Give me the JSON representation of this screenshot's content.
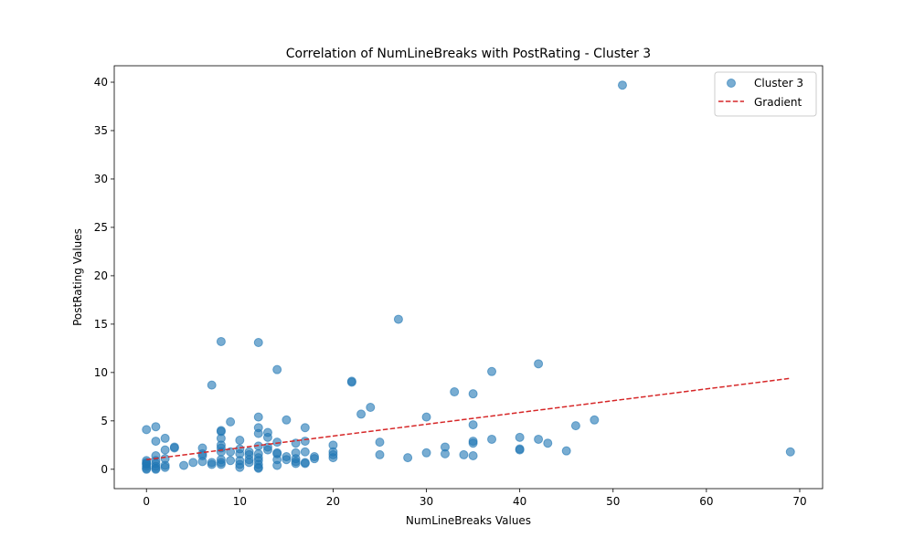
{
  "chart_data": {
    "type": "scatter",
    "title": "Correlation of NumLineBreaks with PostRating - Cluster 3",
    "xlabel": "NumLineBreaks Values",
    "ylabel": "PostRating Values",
    "xlim": [
      -3.45,
      72.45
    ],
    "ylim": [
      -2.0,
      41.7
    ],
    "xticks": [
      0,
      10,
      20,
      30,
      40,
      50,
      60,
      70
    ],
    "yticks": [
      0,
      5,
      10,
      15,
      20,
      25,
      30,
      35,
      40
    ],
    "grid": false,
    "legend_position": "top-right",
    "colors": {
      "points": "#1f77b4",
      "gradient": "#d62728"
    },
    "legend": [
      {
        "label": "Cluster 3",
        "kind": "marker"
      },
      {
        "label": "Gradient",
        "kind": "dashed-line"
      }
    ],
    "series": [
      {
        "name": "Cluster 3",
        "points": [
          [
            0,
            4.1
          ],
          [
            0,
            0.9
          ],
          [
            0,
            0.7
          ],
          [
            0,
            0.5
          ],
          [
            0,
            0.3
          ],
          [
            0,
            0.1
          ],
          [
            0,
            0
          ],
          [
            0,
            0.6
          ],
          [
            1,
            4.4
          ],
          [
            1,
            2.9
          ],
          [
            1,
            1.4
          ],
          [
            1,
            0.9
          ],
          [
            1,
            0.6
          ],
          [
            1,
            0.3
          ],
          [
            1,
            0.1
          ],
          [
            1,
            0
          ],
          [
            2,
            3.2
          ],
          [
            2,
            2.0
          ],
          [
            2,
            1.1
          ],
          [
            2,
            0.4
          ],
          [
            2,
            0.2
          ],
          [
            3,
            2.3
          ],
          [
            3,
            2.2
          ],
          [
            4,
            0.4
          ],
          [
            5,
            0.7
          ],
          [
            6,
            2.2
          ],
          [
            6,
            1.6
          ],
          [
            6,
            1.4
          ],
          [
            6,
            0.8
          ],
          [
            7,
            8.7
          ],
          [
            7,
            0.7
          ],
          [
            7,
            0.5
          ],
          [
            8,
            13.2
          ],
          [
            8,
            4.0
          ],
          [
            8,
            3.9
          ],
          [
            8,
            3.2
          ],
          [
            8,
            2.5
          ],
          [
            8,
            2.2
          ],
          [
            8,
            1.8
          ],
          [
            8,
            1.0
          ],
          [
            8,
            0.7
          ],
          [
            8,
            0.5
          ],
          [
            9,
            4.9
          ],
          [
            9,
            1.8
          ],
          [
            9,
            0.9
          ],
          [
            10,
            3.0
          ],
          [
            10,
            2.1
          ],
          [
            10,
            1.6
          ],
          [
            10,
            0.9
          ],
          [
            10,
            0.5
          ],
          [
            10,
            0.2
          ],
          [
            11,
            1.8
          ],
          [
            11,
            1.5
          ],
          [
            11,
            1.0
          ],
          [
            11,
            0.7
          ],
          [
            12,
            13.1
          ],
          [
            12,
            5.4
          ],
          [
            12,
            4.3
          ],
          [
            12,
            3.7
          ],
          [
            12,
            2.4
          ],
          [
            12,
            1.6
          ],
          [
            12,
            1.2
          ],
          [
            12,
            0.9
          ],
          [
            12,
            0.5
          ],
          [
            12,
            0.2
          ],
          [
            12,
            0.1
          ],
          [
            13,
            3.8
          ],
          [
            13,
            3.3
          ],
          [
            13,
            2.3
          ],
          [
            13,
            2.0
          ],
          [
            14,
            10.3
          ],
          [
            14,
            2.8
          ],
          [
            14,
            1.7
          ],
          [
            14,
            1.6
          ],
          [
            14,
            1.0
          ],
          [
            14,
            0.4
          ],
          [
            15,
            5.1
          ],
          [
            15,
            1.3
          ],
          [
            15,
            1.0
          ],
          [
            16,
            2.7
          ],
          [
            16,
            1.7
          ],
          [
            16,
            1.1
          ],
          [
            16,
            0.8
          ],
          [
            16,
            0.6
          ],
          [
            17,
            4.3
          ],
          [
            17,
            2.9
          ],
          [
            17,
            1.8
          ],
          [
            17,
            0.7
          ],
          [
            17,
            0.6
          ],
          [
            18,
            1.3
          ],
          [
            18,
            1.1
          ],
          [
            20,
            2.5
          ],
          [
            20,
            1.8
          ],
          [
            20,
            1.5
          ],
          [
            20,
            1.2
          ],
          [
            22,
            9.1
          ],
          [
            22,
            9.0
          ],
          [
            23,
            5.7
          ],
          [
            24,
            6.4
          ],
          [
            25,
            2.8
          ],
          [
            25,
            1.5
          ],
          [
            27,
            15.5
          ],
          [
            28,
            1.2
          ],
          [
            30,
            5.4
          ],
          [
            30,
            1.7
          ],
          [
            32,
            2.3
          ],
          [
            32,
            1.6
          ],
          [
            33,
            8.0
          ],
          [
            34,
            1.5
          ],
          [
            35,
            7.8
          ],
          [
            35,
            4.6
          ],
          [
            35,
            2.9
          ],
          [
            35,
            2.7
          ],
          [
            35,
            1.4
          ],
          [
            37,
            10.1
          ],
          [
            37,
            3.1
          ],
          [
            40,
            3.3
          ],
          [
            40,
            2.1
          ],
          [
            40,
            2.0
          ],
          [
            42,
            10.9
          ],
          [
            42,
            3.1
          ],
          [
            43,
            2.7
          ],
          [
            45,
            1.9
          ],
          [
            46,
            4.5
          ],
          [
            48,
            5.1
          ],
          [
            51,
            39.7
          ],
          [
            69,
            1.8
          ]
        ]
      },
      {
        "name": "Gradient",
        "line": [
          [
            0,
            1.0
          ],
          [
            69,
            9.4
          ]
        ]
      }
    ]
  }
}
